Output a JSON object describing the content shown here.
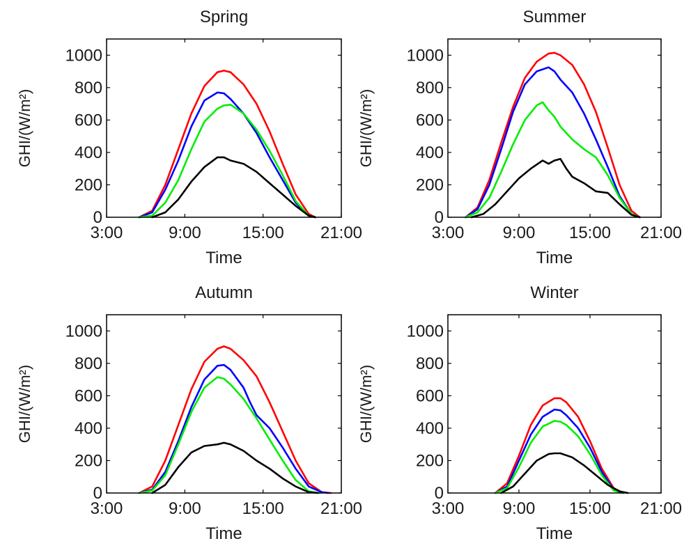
{
  "chart_data": [
    {
      "type": "line",
      "title": "Spring",
      "xlabel": "Time",
      "ylabel": "GHI/(W/m²)",
      "xlim": [
        3,
        21
      ],
      "ylim": [
        0,
        1100
      ],
      "xticks": [
        3,
        9,
        15,
        21
      ],
      "xtick_labels": [
        "3:00",
        "9:00",
        "15:00",
        "21:00"
      ],
      "yticks": [
        0,
        200,
        400,
        600,
        800,
        1000
      ],
      "ytick_labels": [
        "0",
        "200",
        "400",
        "600",
        "800",
        "1000"
      ],
      "series": [
        {
          "color": "#ff0000",
          "x": [
            5.5,
            6.5,
            7.5,
            8.5,
            9.5,
            10.5,
            11.5,
            12,
            12.5,
            13.5,
            14.5,
            15.5,
            16.5,
            17.5,
            18.5,
            19.0
          ],
          "y": [
            0,
            40,
            200,
            420,
            640,
            810,
            895,
            905,
            895,
            820,
            700,
            530,
            330,
            140,
            20,
            0
          ]
        },
        {
          "color": "#0000ff",
          "x": [
            5.5,
            6.5,
            7.5,
            8.5,
            9.5,
            10.5,
            11.5,
            12,
            12.5,
            13.5,
            14.5,
            15.5,
            16.5,
            17.5,
            18.5,
            19.0
          ],
          "y": [
            0,
            30,
            170,
            350,
            560,
            720,
            770,
            765,
            730,
            640,
            520,
            370,
            230,
            90,
            10,
            0
          ]
        },
        {
          "color": "#00ee00",
          "x": [
            5.5,
            6.5,
            7.5,
            8.5,
            9.5,
            10.5,
            11.5,
            12,
            12.5,
            13.5,
            14.5,
            15.5,
            16.5,
            17.5,
            18.5,
            19.0
          ],
          "y": [
            0,
            10,
            90,
            230,
            420,
            590,
            670,
            690,
            695,
            640,
            540,
            410,
            260,
            100,
            10,
            0
          ]
        },
        {
          "color": "#000000",
          "x": [
            6.5,
            7.5,
            8.5,
            9.5,
            10.5,
            11.5,
            12,
            12.5,
            13.5,
            14.5,
            15.5,
            16.5,
            17.5,
            18.5,
            19.0
          ],
          "y": [
            0,
            30,
            110,
            220,
            310,
            370,
            370,
            350,
            330,
            280,
            210,
            140,
            70,
            10,
            0
          ]
        }
      ]
    },
    {
      "type": "line",
      "title": "Summer",
      "xlabel": "Time",
      "ylabel": "GHI/(W/m²)",
      "xlim": [
        3,
        21
      ],
      "ylim": [
        0,
        1100
      ],
      "xticks": [
        3,
        9,
        15,
        21
      ],
      "xtick_labels": [
        "3:00",
        "9:00",
        "15:00",
        "21:00"
      ],
      "yticks": [
        0,
        200,
        400,
        600,
        800,
        1000
      ],
      "ytick_labels": [
        "0",
        "200",
        "400",
        "600",
        "800",
        "1000"
      ],
      "series": [
        {
          "color": "#ff0000",
          "x": [
            4.5,
            5.5,
            6.5,
            7.5,
            8.5,
            9.5,
            10.5,
            11.5,
            12,
            12.5,
            13.5,
            14.5,
            15.5,
            16.5,
            17.5,
            18.5,
            19.2
          ],
          "y": [
            0,
            60,
            230,
            460,
            680,
            860,
            960,
            1010,
            1015,
            1000,
            940,
            820,
            650,
            430,
            200,
            40,
            0
          ]
        },
        {
          "color": "#0000ff",
          "x": [
            4.5,
            5.5,
            6.5,
            7.5,
            8.5,
            9.5,
            10.5,
            11.5,
            12,
            12.5,
            13.5,
            14.5,
            15.5,
            16.5,
            17.5,
            18.5,
            19.2
          ],
          "y": [
            0,
            50,
            200,
            420,
            650,
            820,
            900,
            925,
            900,
            850,
            770,
            640,
            480,
            310,
            130,
            20,
            0
          ]
        },
        {
          "color": "#00ee00",
          "x": [
            4.5,
            5.5,
            6.5,
            7.5,
            8.5,
            9.5,
            10.5,
            11,
            11.5,
            12,
            12.5,
            13.5,
            14.5,
            15.5,
            16.5,
            17.5,
            18.5,
            19.2
          ],
          "y": [
            0,
            30,
            120,
            280,
            450,
            600,
            690,
            710,
            660,
            620,
            560,
            480,
            420,
            370,
            260,
            120,
            20,
            0
          ]
        },
        {
          "color": "#000000",
          "x": [
            5,
            6,
            7,
            8,
            9,
            10,
            11,
            11.5,
            12,
            12.5,
            13,
            13.5,
            14.5,
            15.5,
            16.5,
            17.5,
            18.5,
            19.2
          ],
          "y": [
            0,
            20,
            80,
            160,
            240,
            300,
            350,
            330,
            350,
            360,
            300,
            250,
            210,
            160,
            150,
            80,
            15,
            0
          ]
        }
      ]
    },
    {
      "type": "line",
      "title": "Autumn",
      "xlabel": "Time",
      "ylabel": "GHI/(W/m²)",
      "xlim": [
        3,
        21
      ],
      "ylim": [
        0,
        1100
      ],
      "xticks": [
        3,
        9,
        15,
        21
      ],
      "xtick_labels": [
        "3:00",
        "9:00",
        "15:00",
        "21:00"
      ],
      "yticks": [
        0,
        200,
        400,
        600,
        800,
        1000
      ],
      "ytick_labels": [
        "0",
        "200",
        "400",
        "600",
        "800",
        "1000"
      ],
      "series": [
        {
          "color": "#ff0000",
          "x": [
            5.5,
            6.5,
            7.5,
            8.5,
            9.5,
            10.5,
            11.5,
            12,
            12.5,
            13.5,
            14.5,
            15.5,
            16.5,
            17.5,
            18.5,
            19.5,
            20.2
          ],
          "y": [
            0,
            40,
            200,
            420,
            640,
            810,
            890,
            905,
            890,
            820,
            720,
            560,
            380,
            200,
            60,
            5,
            0
          ]
        },
        {
          "color": "#0000ff",
          "x": [
            5.5,
            6.5,
            7.5,
            8.5,
            9.5,
            10.5,
            11.5,
            12,
            12.5,
            13.5,
            14,
            14.5,
            15.5,
            16.5,
            17.5,
            18.5,
            19.5,
            20
          ],
          "y": [
            0,
            20,
            130,
            320,
            530,
            700,
            785,
            790,
            760,
            650,
            560,
            480,
            400,
            280,
            150,
            40,
            5,
            0
          ]
        },
        {
          "color": "#00ee00",
          "x": [
            5.5,
            6.5,
            7.5,
            8.5,
            9.5,
            10.5,
            11.5,
            12,
            12.5,
            13.5,
            14.5,
            15.5,
            16.5,
            17.5,
            18.5,
            19.3
          ],
          "y": [
            0,
            15,
            110,
            300,
            500,
            650,
            715,
            705,
            670,
            580,
            460,
            330,
            200,
            80,
            10,
            0
          ]
        },
        {
          "color": "#000000",
          "x": [
            6.5,
            7.5,
            8.5,
            9.5,
            10.5,
            11.5,
            12,
            12.5,
            13.5,
            14.5,
            15.5,
            16.5,
            17.5,
            18.5,
            19.2
          ],
          "y": [
            0,
            50,
            160,
            250,
            290,
            300,
            310,
            300,
            260,
            200,
            150,
            90,
            40,
            5,
            0
          ]
        }
      ]
    },
    {
      "type": "line",
      "title": "Winter",
      "xlabel": "Time",
      "ylabel": "GHI/(W/m²)",
      "xlim": [
        3,
        21
      ],
      "ylim": [
        0,
        1100
      ],
      "xticks": [
        3,
        9,
        15,
        21
      ],
      "xtick_labels": [
        "3:00",
        "9:00",
        "15:00",
        "21:00"
      ],
      "yticks": [
        0,
        200,
        400,
        600,
        800,
        1000
      ],
      "ytick_labels": [
        "0",
        "200",
        "400",
        "600",
        "800",
        "1000"
      ],
      "series": [
        {
          "color": "#ff0000",
          "x": [
            7,
            8,
            9,
            10,
            11,
            12,
            12.5,
            13,
            14,
            15,
            16,
            17,
            17.8
          ],
          "y": [
            0,
            60,
            230,
            420,
            540,
            585,
            585,
            560,
            470,
            320,
            150,
            30,
            0
          ]
        },
        {
          "color": "#0000ff",
          "x": [
            7,
            8,
            9,
            10,
            11,
            12,
            12.5,
            13,
            14,
            15,
            16,
            17,
            17.8
          ],
          "y": [
            0,
            40,
            200,
            360,
            470,
            515,
            510,
            480,
            400,
            280,
            130,
            20,
            0
          ]
        },
        {
          "color": "#00ee00",
          "x": [
            7,
            8,
            9,
            10,
            11,
            12,
            12.5,
            13,
            14,
            15,
            16,
            17,
            17.8
          ],
          "y": [
            0,
            30,
            160,
            310,
            410,
            445,
            440,
            420,
            350,
            240,
            110,
            15,
            0
          ]
        },
        {
          "color": "#000000",
          "x": [
            7.5,
            8.5,
            9.5,
            10.5,
            11.5,
            12,
            12.5,
            13.5,
            14.5,
            15.5,
            16.5,
            17.5,
            18.2
          ],
          "y": [
            0,
            40,
            120,
            200,
            240,
            245,
            245,
            220,
            170,
            110,
            50,
            10,
            0
          ]
        }
      ]
    }
  ]
}
